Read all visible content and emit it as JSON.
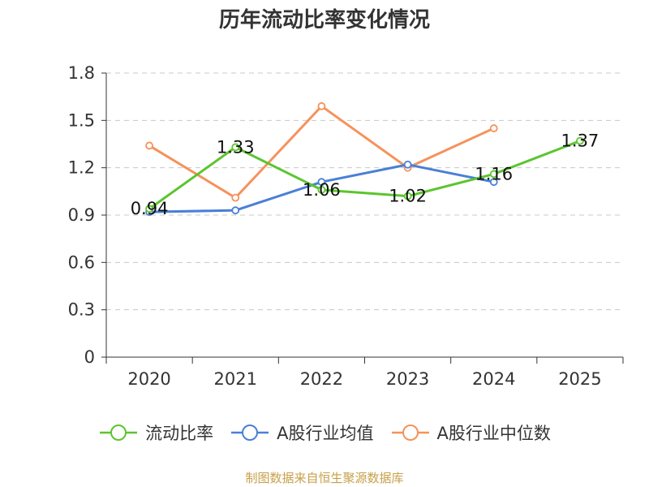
{
  "chart_data": {
    "type": "line",
    "title": "历年流动比率变化情况",
    "categories": [
      "2020",
      "2021",
      "2022",
      "2023",
      "2024",
      "2025"
    ],
    "ylim": [
      0,
      1.8
    ],
    "yticks": [
      0,
      0.3,
      0.6,
      0.9,
      1.2,
      1.5,
      1.8
    ],
    "ytick_labels": [
      "0",
      "0.3",
      "0.6",
      "0.9",
      "1.2",
      "1.5",
      "1.8"
    ],
    "grid": true,
    "legend_position": "bottom",
    "series": [
      {
        "name": "流动比率",
        "color": "#5bc52e",
        "values": [
          0.94,
          1.33,
          1.06,
          1.02,
          1.16,
          1.37
        ],
        "labels": [
          "0.94",
          "1.33",
          "1.06",
          "1.02",
          "1.16",
          "1.37"
        ]
      },
      {
        "name": "A股行业均值",
        "color": "#4a7fd6",
        "values": [
          0.92,
          0.93,
          1.11,
          1.22,
          1.11,
          null
        ]
      },
      {
        "name": "A股行业中位数",
        "color": "#f5925b",
        "values": [
          1.34,
          1.01,
          1.59,
          1.2,
          1.45,
          null
        ]
      }
    ]
  },
  "source_text": "制图数据来自恒生聚源数据库"
}
